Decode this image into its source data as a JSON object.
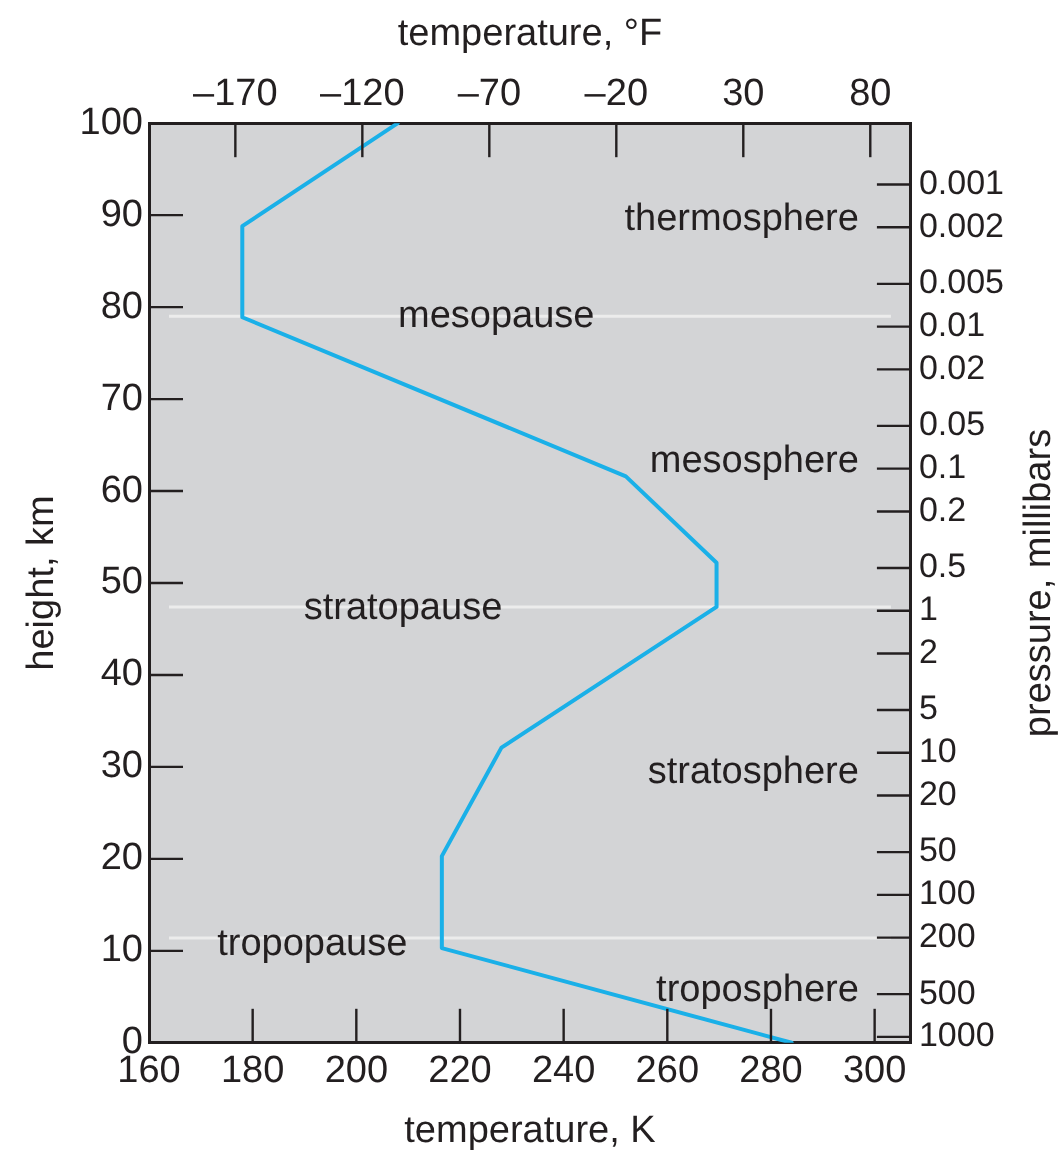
{
  "chart_data": {
    "type": "line",
    "xlabel": "temperature, K",
    "ylabel": "height, km",
    "x2label": "temperature, °F",
    "y2label": "pressure, millibars",
    "xlim": [
      160,
      307
    ],
    "xticks": [
      160,
      180,
      200,
      220,
      240,
      260,
      280,
      300
    ],
    "ylim": [
      0,
      100
    ],
    "yticks": [
      0,
      10,
      20,
      30,
      40,
      50,
      60,
      70,
      80,
      90,
      100
    ],
    "x2lim": [
      -204,
      96
    ],
    "x2ticks": [
      {
        "value": -170,
        "label": "–170"
      },
      {
        "value": -120,
        "label": "–120"
      },
      {
        "value": -70,
        "label": "–70"
      },
      {
        "value": -20,
        "label": "–20"
      },
      30,
      80
    ],
    "y2lim": [
      1100,
      0.00037
    ],
    "y2ticks": [
      {
        "value": 0.001,
        "label": "0.001"
      },
      {
        "value": 0.002,
        "label": "0.002"
      },
      {
        "value": 0.005,
        "label": "0.005"
      },
      {
        "value": 0.01,
        "label": "0.01"
      },
      {
        "value": 0.02,
        "label": "0.02"
      },
      {
        "value": 0.05,
        "label": "0.05"
      },
      {
        "value": 0.1,
        "label": "0.1"
      },
      {
        "value": 0.2,
        "label": "0.2"
      },
      {
        "value": 0.5,
        "label": "0.5"
      },
      {
        "value": 1,
        "label": "1"
      },
      {
        "value": 2,
        "label": "2"
      },
      {
        "value": 5,
        "label": "5"
      },
      {
        "value": 10,
        "label": "10"
      },
      {
        "value": 20,
        "label": "20"
      },
      {
        "value": 50,
        "label": "50"
      },
      {
        "value": 100,
        "label": "100"
      },
      {
        "value": 200,
        "label": "200"
      },
      {
        "value": 500,
        "label": "500"
      },
      {
        "value": 1000,
        "label": "1000"
      }
    ],
    "log": "y2",
    "series": [
      {
        "color": "#1ab0e8",
        "x": [
          284,
          216.5,
          216.5,
          228,
          269.5,
          269.5,
          252,
          178,
          178,
          208
        ],
        "values": [
          0,
          10.3,
          20.3,
          32.1,
          47.4,
          52.2,
          61.6,
          78.9,
          88.8,
          100
        ]
      }
    ],
    "ref_lines": [
      {
        "axis": "y",
        "value": 79,
        "color": "#ececec"
      },
      {
        "axis": "y",
        "value": 47.4,
        "color": "#ececec"
      },
      {
        "axis": "y",
        "value": 11.4,
        "color": "#ececec"
      }
    ],
    "annotations": [
      "thermosphere",
      {
        "text": "mesopause",
        "x": 227,
        "y": 79
      },
      "mesosphere",
      {
        "text": "stratopause",
        "x": 209,
        "y": 47.2
      },
      "stratosphere",
      {
        "text": "tropopause",
        "x": 191.5,
        "y": 10.7
      },
      "troposphere"
    ],
    "grid": false,
    "legend": false,
    "marker": "none",
    "line_style": "solid"
  }
}
